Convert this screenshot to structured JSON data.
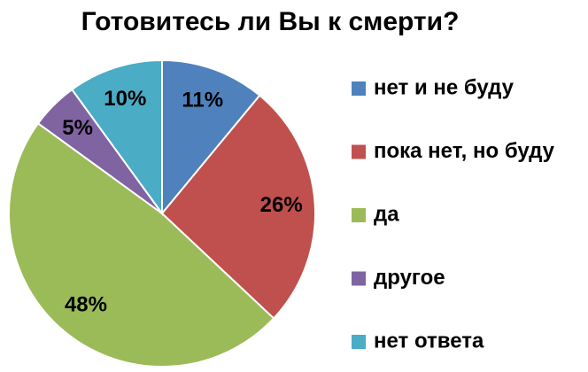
{
  "chart_data": {
    "type": "pie",
    "title": "Готовитесь ли Вы к смерти?",
    "categories": [
      "нет и не буду",
      "пока нет, но буду",
      "да",
      "другое",
      "нет ответа"
    ],
    "values": [
      11,
      26,
      48,
      5,
      10
    ],
    "value_labels": [
      "11%",
      "26%",
      "48%",
      "5%",
      "10%"
    ],
    "colors": [
      "#4f81bd",
      "#c0504d",
      "#9bbb59",
      "#8064a2",
      "#4bacc6"
    ],
    "legend": "right"
  }
}
